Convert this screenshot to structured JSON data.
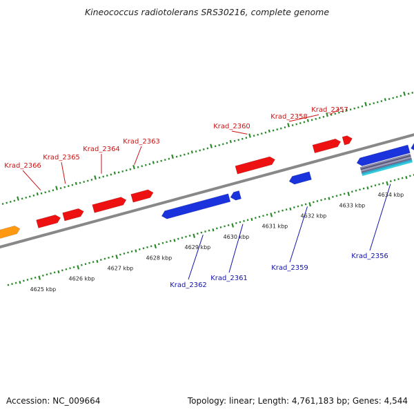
{
  "title": "Kineococcus radiotolerans SRS30216, complete genome",
  "footer": {
    "accession": "Accession: NC_009664",
    "summary": "Topology: linear; Length: 4,761,183 bp; Genes: 4,544"
  },
  "colors": {
    "forward_gene": "#ee1111",
    "reverse_gene": "#1a33dd",
    "other_gene": "#ff9911",
    "backbone": "#888888",
    "tick": "#2a8a2a",
    "forward_label": "#cc1111",
    "reverse_label": "#1111aa"
  },
  "scale": {
    "unit": "kbp",
    "labels": [
      "4625 kbp",
      "4626 kbp",
      "4627 kbp",
      "4628 kbp",
      "4629 kbp",
      "4630 kbp",
      "4631 kbp",
      "4632 kbp",
      "4633 kbp",
      "4634 kbp"
    ],
    "label_positions_kbp": [
      4625,
      4626,
      4627,
      4628,
      4629,
      4630,
      4631,
      4632,
      4633,
      4634
    ]
  },
  "genes": {
    "forward": [
      {
        "name": "Krad_2366",
        "start": 4625.3,
        "end": 4625.9,
        "labeled": true
      },
      {
        "name": "Krad_2365",
        "start": 4625.98,
        "end": 4626.5,
        "labeled": true
      },
      {
        "name": "Krad_2364",
        "start": 4626.75,
        "end": 4627.6,
        "labeled": true
      },
      {
        "name": "Krad_2363",
        "start": 4627.75,
        "end": 4628.3,
        "labeled": true
      },
      {
        "name": "Krad_2360",
        "start": 4630.45,
        "end": 4631.45,
        "labeled": true
      },
      {
        "name": "Krad_2358",
        "start": 4632.45,
        "end": 4633.15,
        "labeled": true
      },
      {
        "name": "Krad_2357",
        "start": 4633.22,
        "end": 4633.45,
        "labeled": true
      }
    ],
    "reverse": [
      {
        "name": "Krad_2362",
        "start": 4628.35,
        "end": 4630.1,
        "labeled": true
      },
      {
        "name": "Krad_2361",
        "start": 4630.13,
        "end": 4630.38,
        "labeled": true
      },
      {
        "name": "Krad_2359",
        "start": 4631.65,
        "end": 4632.2,
        "labeled": true
      },
      {
        "name": "Krad_2356",
        "start": 4633.4,
        "end": 4634.75,
        "labeled": true
      },
      {
        "name": "",
        "start": 4634.8,
        "end": 4635.5,
        "labeled": false
      }
    ],
    "other": [
      {
        "name": "",
        "start": 4624.2,
        "end": 4624.85,
        "labeled": false
      }
    ]
  },
  "feature_stack": {
    "start": 4633.45,
    "end": 4634.75
  }
}
